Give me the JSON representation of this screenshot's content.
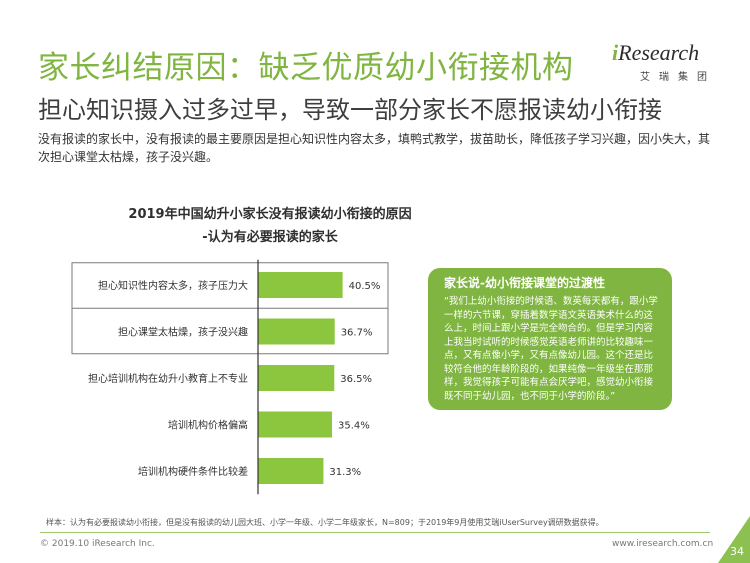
{
  "header": {
    "title": "家长纠结原因：缺乏优质幼小衔接机构",
    "subtitle": "担心知识摄入过多过早，导致一部分家长不愿报读幼小衔接"
  },
  "intro": "没有报读的家长中，没有报读的最主要原因是担心知识性内容太多，填鸭式教学，拔苗助长，降低孩子学习兴趣，因小失大，其次担心课堂太枯燥，孩子没兴趣。",
  "logo": {
    "i": "i",
    "rest": "Research",
    "sub": "艾瑞集团"
  },
  "chart_data": {
    "type": "bar",
    "orientation": "horizontal",
    "title": "2019年中国幼升小家长没有报读幼小衔接的原因",
    "subtitle": "-认为有必要报读的家长",
    "categories": [
      "担心知识性内容太多，孩子压力大",
      "担心课堂太枯燥，孩子没兴趣",
      "担心培训机构在幼升小教育上不专业",
      "培训机构价格偏高",
      "培训机构硬件条件比较差"
    ],
    "values": [
      40.5,
      36.7,
      36.5,
      35.4,
      31.3
    ],
    "value_labels": [
      "40.5%",
      "36.7%",
      "36.5%",
      "35.4%",
      "31.3%"
    ],
    "unit": "%",
    "xlim": [
      0,
      100
    ],
    "highlighted_categories": 2,
    "bar_color": "#8cc63f"
  },
  "quote": {
    "title": "家长说-幼小衔接课堂的过渡性",
    "text": "“我们上幼小衔接的时候语、数英每天都有，跟小学一样的六节课，穿插着数学语文英语美术什么的这么上，时间上跟小学是完全吻合的。但是学习内容上我当时试听的时候感觉英语老师讲的比较趣味一点，又有点像小学，又有点像幼儿园。这个还是比较符合他的年龄阶段的，如果纯像一年级坐在那那样，我觉得孩子可能有点会厌学吧，感觉幼小衔接既不同于幼儿园，也不同于小学的阶段。”"
  },
  "footer": {
    "note": "样本：认为有必要报读幼小衔接，但是没有报读的幼儿园大班、小学一年级、小学二年级家长，N=809；于2019年9月使用艾瑞iUserSurvey调研数据获得。",
    "copyright": "© 2019.10 iResearch Inc.",
    "website": "www.iresearch.com.cn",
    "page": "34"
  },
  "colors": {
    "accent": "#7fb540",
    "bar": "#8cc63f",
    "axis": "#333333"
  }
}
